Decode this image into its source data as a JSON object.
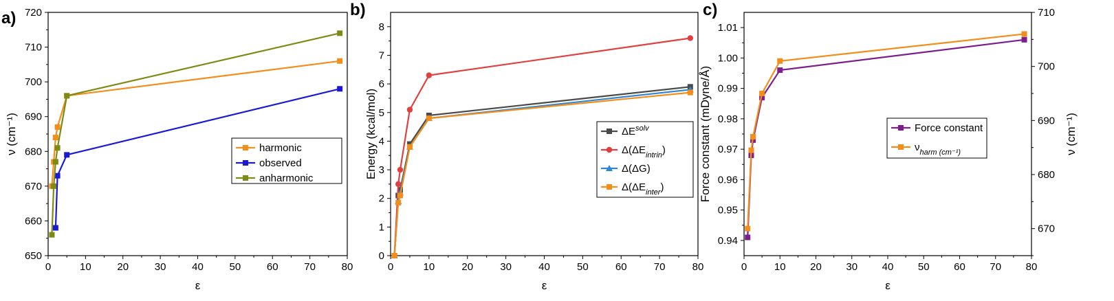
{
  "chart_data": [
    {
      "type": "line",
      "panel_label": "a)",
      "xlabel": "ε",
      "ylabel": "ν (cm⁻¹)",
      "xlim": [
        0,
        80
      ],
      "ylim": [
        650,
        720
      ],
      "xticks": [
        0,
        10,
        20,
        30,
        40,
        50,
        60,
        70,
        80
      ],
      "yticks": [
        650,
        660,
        670,
        680,
        690,
        700,
        710,
        720
      ],
      "legend_position": "center-right",
      "series": [
        {
          "name": "harmonic",
          "color": "#f28e1c",
          "marker": "square",
          "x": [
            1,
            1.5,
            2,
            2.5,
            5,
            78
          ],
          "y": [
            670,
            677,
            684,
            687,
            696,
            706
          ]
        },
        {
          "name": "observed",
          "color": "#1a1ad6",
          "marker": "square",
          "x": [
            2,
            2.5,
            5,
            78
          ],
          "y": [
            658,
            673,
            679,
            698
          ]
        },
        {
          "name": "anharmonic",
          "color": "#7f8a15",
          "marker": "square",
          "x": [
            1,
            1.5,
            2,
            2.5,
            5,
            78
          ],
          "y": [
            656,
            670,
            677,
            681,
            696,
            714
          ]
        }
      ]
    },
    {
      "type": "line",
      "panel_label": "b)",
      "xlabel": "ε",
      "ylabel": "Energy (kcal/mol)",
      "xlim": [
        0,
        80
      ],
      "ylim": [
        0,
        8.5
      ],
      "xticks": [
        0,
        10,
        20,
        30,
        40,
        50,
        60,
        70,
        80
      ],
      "yticks": [
        0,
        1,
        2,
        3,
        4,
        5,
        6,
        7,
        8
      ],
      "legend_position": "center-right",
      "series": [
        {
          "name": "ΔE^solv",
          "color": "#4a4a4a",
          "marker": "square",
          "x": [
            1,
            2,
            2.5,
            5,
            10,
            78
          ],
          "y": [
            0,
            2.1,
            2.3,
            3.9,
            4.9,
            5.9
          ]
        },
        {
          "name": "Δ(ΔE_intrin)",
          "color": "#e04040",
          "marker": "circle",
          "x": [
            1,
            2,
            2.5,
            5,
            10,
            78
          ],
          "y": [
            0,
            2.5,
            3.0,
            5.1,
            6.3,
            7.6
          ]
        },
        {
          "name": "Δ(ΔG)",
          "color": "#2f86d6",
          "marker": "triangle",
          "x": [
            1,
            2,
            2.5,
            5,
            10,
            78
          ],
          "y": [
            0,
            1.9,
            2.2,
            3.8,
            4.8,
            5.8
          ]
        },
        {
          "name": "Δ(ΔE_inter)",
          "color": "#f28e1c",
          "marker": "square",
          "x": [
            1,
            2,
            2.5,
            5,
            10,
            78
          ],
          "y": [
            0,
            1.85,
            2.1,
            3.8,
            4.8,
            5.7
          ]
        }
      ]
    },
    {
      "type": "line",
      "panel_label": "c)",
      "xlabel": "ε",
      "ylabel": "Force constant (mDyne/Å)",
      "y2label": "ν (cm⁻¹)",
      "xlim": [
        0,
        80
      ],
      "ylim": [
        0.935,
        1.015
      ],
      "y2lim": [
        665,
        710
      ],
      "xticks": [
        0,
        10,
        20,
        30,
        40,
        50,
        60,
        70,
        80
      ],
      "yticks": [
        0.94,
        0.95,
        0.96,
        0.97,
        0.98,
        0.99,
        1.0,
        1.01
      ],
      "y2ticks": [
        670,
        680,
        690,
        700,
        710
      ],
      "legend_position": "center-right",
      "series": [
        {
          "name": "Force constant",
          "color": "#7b1f8c",
          "marker": "square",
          "axis": "left",
          "x": [
            1,
            2,
            2.5,
            5,
            10,
            78
          ],
          "y": [
            0.941,
            0.968,
            0.973,
            0.987,
            0.996,
            1.006
          ]
        },
        {
          "name": "ν_harm (cm⁻¹)",
          "color": "#f28e1c",
          "marker": "square",
          "axis": "right",
          "x": [
            1,
            2,
            2.5,
            5,
            10,
            78
          ],
          "y": [
            670,
            684.5,
            687,
            695,
            701,
            706
          ]
        }
      ]
    }
  ]
}
